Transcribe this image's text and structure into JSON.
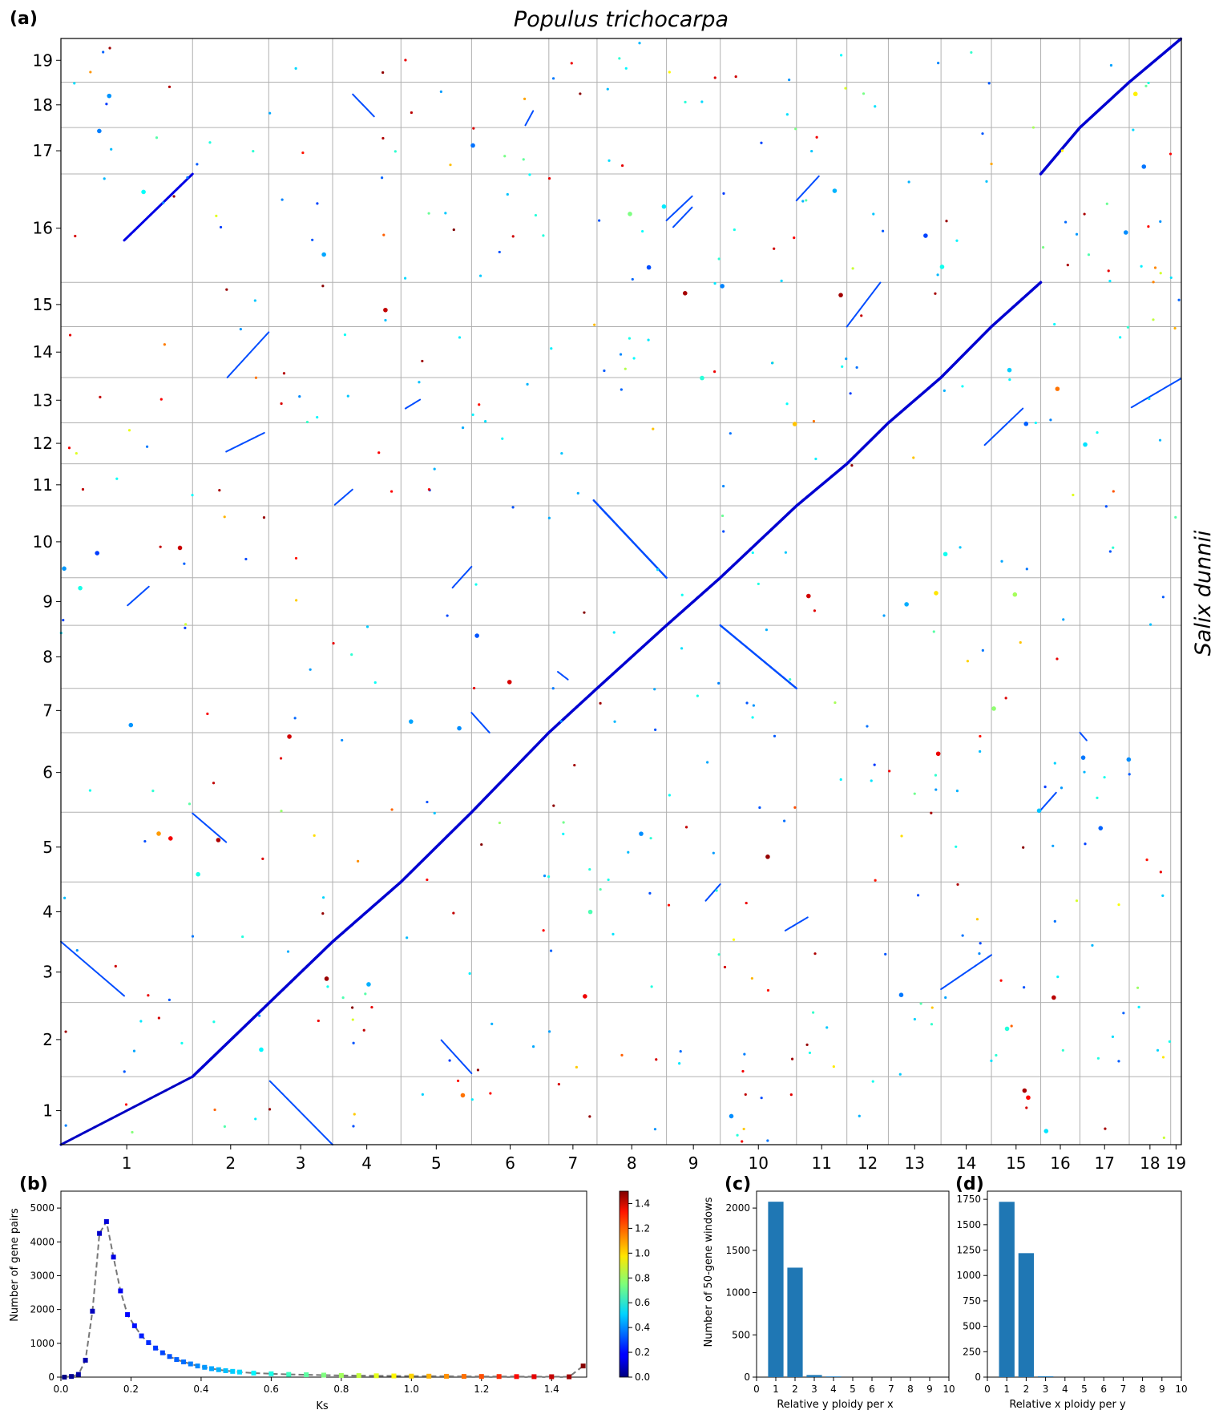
{
  "panel_labels": {
    "a": "(a)",
    "b": "(b)",
    "c": "(c)",
    "d": "(d)"
  },
  "chart_data": [
    {
      "id": "dotplot",
      "type": "scatter",
      "title": "Populus trichocarpa",
      "xlabel": "Populus trichocarpa",
      "ylabel": "Salix dunnii",
      "x_chromosomes": {
        "labels": [
          "1",
          "2",
          "3",
          "4",
          "5",
          "6",
          "7",
          "8",
          "9",
          "10",
          "11",
          "12",
          "13",
          "14",
          "15",
          "16",
          "17",
          "18",
          "19"
        ],
        "boundaries": [
          0,
          0.1175,
          0.1855,
          0.2425,
          0.3035,
          0.3665,
          0.4355,
          0.4785,
          0.5405,
          0.5885,
          0.6565,
          0.7015,
          0.7385,
          0.7855,
          0.8305,
          0.8745,
          0.9095,
          0.9535,
          0.9905,
          1.0
        ]
      },
      "y_chromosomes": {
        "labels": [
          "1",
          "2",
          "3",
          "4",
          "5",
          "6",
          "7",
          "8",
          "9",
          "10",
          "11",
          "12",
          "13",
          "14",
          "15",
          "16",
          "17",
          "18",
          "19"
        ],
        "boundaries": [
          0,
          0.0615,
          0.1285,
          0.1835,
          0.2375,
          0.3005,
          0.3725,
          0.4125,
          0.4695,
          0.5125,
          0.5775,
          0.6155,
          0.6525,
          0.6935,
          0.7395,
          0.7795,
          0.8775,
          0.9195,
          0.9605,
          1.0
        ]
      },
      "color_scale": {
        "name": "Ks",
        "min": 0.0,
        "max": 1.5
      },
      "segments": [
        {
          "x0": 0.0,
          "y0": 0.0,
          "x1": 0.1175,
          "y1": 0.0615,
          "ks": 0.1,
          "w": 3
        },
        {
          "x0": 0.1175,
          "y0": 0.0615,
          "x1": 0.2425,
          "y1": 0.1835,
          "ks": 0.12,
          "w": 3.5
        },
        {
          "x0": 0.2425,
          "y0": 0.1835,
          "x1": 0.3035,
          "y1": 0.2375,
          "ks": 0.12,
          "w": 3.5
        },
        {
          "x0": 0.3035,
          "y0": 0.2375,
          "x1": 0.3665,
          "y1": 0.3005,
          "ks": 0.12,
          "w": 3.5
        },
        {
          "x0": 0.3665,
          "y0": 0.3005,
          "x1": 0.4355,
          "y1": 0.3725,
          "ks": 0.12,
          "w": 3.5
        },
        {
          "x0": 0.4355,
          "y0": 0.3725,
          "x1": 0.4785,
          "y1": 0.4125,
          "ks": 0.12,
          "w": 3.5
        },
        {
          "x0": 0.4785,
          "y0": 0.4125,
          "x1": 0.5405,
          "y1": 0.4695,
          "ks": 0.12,
          "w": 3.5
        },
        {
          "x0": 0.5405,
          "y0": 0.4695,
          "x1": 0.5885,
          "y1": 0.5125,
          "ks": 0.12,
          "w": 3.5
        },
        {
          "x0": 0.5885,
          "y0": 0.5125,
          "x1": 0.6565,
          "y1": 0.5775,
          "ks": 0.12,
          "w": 3.5
        },
        {
          "x0": 0.6565,
          "y0": 0.5775,
          "x1": 0.7015,
          "y1": 0.6155,
          "ks": 0.12,
          "w": 3.5
        },
        {
          "x0": 0.7015,
          "y0": 0.6155,
          "x1": 0.7385,
          "y1": 0.6525,
          "ks": 0.12,
          "w": 3.5
        },
        {
          "x0": 0.7385,
          "y0": 0.6525,
          "x1": 0.7855,
          "y1": 0.6935,
          "ks": 0.12,
          "w": 3.5
        },
        {
          "x0": 0.7855,
          "y0": 0.6935,
          "x1": 0.8305,
          "y1": 0.7395,
          "ks": 0.12,
          "w": 3.5
        },
        {
          "x0": 0.8305,
          "y0": 0.7395,
          "x1": 0.8745,
          "y1": 0.7795,
          "ks": 0.12,
          "w": 3.5
        },
        {
          "x0": 0.8745,
          "y0": 0.8775,
          "x1": 0.9095,
          "y1": 0.9195,
          "ks": 0.12,
          "w": 3.5
        },
        {
          "x0": 0.9095,
          "y0": 0.9195,
          "x1": 0.9535,
          "y1": 0.9605,
          "ks": 0.12,
          "w": 3.5
        },
        {
          "x0": 0.9535,
          "y0": 0.9605,
          "x1": 1.0,
          "y1": 1.0,
          "ks": 0.12,
          "w": 3.5
        },
        {
          "x0": 0.0565,
          "y0": 0.8175,
          "x1": 0.1175,
          "y1": 0.8775,
          "ks": 0.15,
          "w": 3
        },
        {
          "x0": 0.0,
          "y0": 0.1835,
          "x1": 0.0565,
          "y1": 0.1345,
          "ks": 0.3,
          "w": 2
        },
        {
          "x0": 0.1175,
          "y0": 0.2995,
          "x1": 0.1475,
          "y1": 0.2735,
          "ks": 0.3,
          "w": 2
        },
        {
          "x0": 0.1865,
          "y0": 0.0575,
          "x1": 0.2425,
          "y1": 0.0,
          "ks": 0.3,
          "w": 2
        },
        {
          "x0": 0.3395,
          "y0": 0.0945,
          "x1": 0.3665,
          "y1": 0.0645,
          "ks": 0.3,
          "w": 2
        },
        {
          "x0": 0.4755,
          "y0": 0.5825,
          "x1": 0.5405,
          "y1": 0.5125,
          "ks": 0.3,
          "w": 2.5
        },
        {
          "x0": 0.5885,
          "y0": 0.4695,
          "x1": 0.6565,
          "y1": 0.4125,
          "ks": 0.3,
          "w": 2.5
        },
        {
          "x0": 0.1475,
          "y0": 0.6265,
          "x1": 0.1815,
          "y1": 0.6435,
          "ks": 0.3,
          "w": 2
        },
        {
          "x0": 0.1485,
          "y0": 0.6935,
          "x1": 0.1855,
          "y1": 0.7345,
          "ks": 0.3,
          "w": 2
        },
        {
          "x0": 0.0595,
          "y0": 0.4875,
          "x1": 0.0785,
          "y1": 0.5045,
          "ks": 0.3,
          "w": 2
        },
        {
          "x0": 0.3495,
          "y0": 0.5035,
          "x1": 0.3665,
          "y1": 0.5225,
          "ks": 0.3,
          "w": 2
        },
        {
          "x0": 0.2445,
          "y0": 0.5785,
          "x1": 0.2605,
          "y1": 0.5925,
          "ks": 0.3,
          "w": 2
        },
        {
          "x0": 0.3075,
          "y0": 0.6655,
          "x1": 0.3205,
          "y1": 0.6735,
          "ks": 0.3,
          "w": 2
        },
        {
          "x0": 0.2605,
          "y0": 0.9495,
          "x1": 0.2795,
          "y1": 0.9295,
          "ks": 0.3,
          "w": 2
        },
        {
          "x0": 0.5465,
          "y0": 0.8295,
          "x1": 0.5635,
          "y1": 0.8475,
          "ks": 0.3,
          "w": 2
        },
        {
          "x0": 0.6565,
          "y0": 0.8535,
          "x1": 0.6765,
          "y1": 0.8755,
          "ks": 0.3,
          "w": 2
        },
        {
          "x0": 0.7015,
          "y0": 0.7395,
          "x1": 0.7315,
          "y1": 0.7795,
          "ks": 0.3,
          "w": 2
        },
        {
          "x0": 0.8245,
          "y0": 0.6325,
          "x1": 0.8585,
          "y1": 0.6655,
          "ks": 0.3,
          "w": 2
        },
        {
          "x0": 0.7855,
          "y0": 0.1405,
          "x1": 0.8305,
          "y1": 0.1715,
          "ks": 0.3,
          "w": 2
        },
        {
          "x0": 0.9555,
          "y0": 0.6665,
          "x1": 0.9995,
          "y1": 0.6925,
          "ks": 0.3,
          "w": 2
        },
        {
          "x0": 0.5755,
          "y0": 0.2205,
          "x1": 0.5885,
          "y1": 0.2355,
          "ks": 0.3,
          "w": 2
        },
        {
          "x0": 0.8745,
          "y0": 0.3025,
          "x1": 0.8885,
          "y1": 0.3185,
          "ks": 0.3,
          "w": 2
        },
        {
          "x0": 0.3665,
          "y0": 0.3905,
          "x1": 0.3825,
          "y1": 0.3725,
          "ks": 0.3,
          "w": 2
        },
        {
          "x0": 0.4435,
          "y0": 0.4275,
          "x1": 0.4525,
          "y1": 0.4205,
          "ks": 0.3,
          "w": 2
        },
        {
          "x0": 0.9095,
          "y0": 0.3725,
          "x1": 0.9155,
          "y1": 0.3655,
          "ks": 0.3,
          "w": 2
        },
        {
          "x0": 0.6465,
          "y0": 0.1935,
          "x1": 0.6665,
          "y1": 0.2055,
          "ks": 0.3,
          "w": 2
        },
        {
          "x0": 0.5405,
          "y0": 0.8355,
          "x1": 0.5635,
          "y1": 0.8575,
          "ks": 0.3,
          "w": 2
        },
        {
          "x0": 0.4145,
          "y0": 0.9215,
          "x1": 0.4215,
          "y1": 0.9345,
          "ks": 0.3,
          "w": 2
        }
      ]
    },
    {
      "id": "ks_distribution",
      "type": "line",
      "xlabel": "Ks",
      "ylabel": "Number of gene pairs",
      "xlim": [
        0,
        1.5
      ],
      "ylim": [
        0,
        5500
      ],
      "xticks": [
        "0.0",
        "0.2",
        "0.4",
        "0.6",
        "0.8",
        "1.0",
        "1.2",
        "1.4"
      ],
      "yticks": [
        "0",
        "1000",
        "2000",
        "3000",
        "4000",
        "5000"
      ],
      "x": [
        0.01,
        0.03,
        0.05,
        0.07,
        0.09,
        0.11,
        0.13,
        0.15,
        0.17,
        0.19,
        0.21,
        0.23,
        0.25,
        0.27,
        0.29,
        0.31,
        0.33,
        0.35,
        0.37,
        0.39,
        0.41,
        0.43,
        0.45,
        0.47,
        0.49,
        0.51,
        0.55,
        0.6,
        0.65,
        0.7,
        0.75,
        0.8,
        0.85,
        0.9,
        0.95,
        1.0,
        1.05,
        1.1,
        1.15,
        1.2,
        1.25,
        1.3,
        1.35,
        1.4,
        1.45,
        1.49
      ],
      "values": [
        0,
        20,
        80,
        500,
        1950,
        4250,
        4600,
        3550,
        2550,
        1850,
        1520,
        1220,
        1020,
        860,
        720,
        610,
        520,
        450,
        390,
        330,
        290,
        250,
        220,
        190,
        170,
        150,
        120,
        100,
        80,
        70,
        60,
        50,
        45,
        40,
        35,
        30,
        28,
        25,
        22,
        20,
        18,
        16,
        14,
        12,
        10,
        330
      ],
      "colorbar": {
        "min": 0.0,
        "max": 1.5,
        "ticks": [
          "0.0",
          "0.2",
          "0.4",
          "0.6",
          "0.8",
          "1.0",
          "1.2",
          "1.4"
        ]
      }
    },
    {
      "id": "ploidy_y_per_x",
      "type": "bar",
      "xlabel": "Relative y ploidy per x",
      "ylabel": "Number of 50-gene windows",
      "categories": [
        1,
        2,
        3,
        4,
        5,
        6,
        7,
        8,
        9,
        10
      ],
      "values": [
        2075,
        1295,
        25,
        8,
        0,
        0,
        0,
        0,
        0,
        0
      ],
      "xlim": [
        0,
        10
      ],
      "ylim": [
        0,
        2200
      ],
      "xticks": [
        "0",
        "1",
        "2",
        "3",
        "4",
        "5",
        "6",
        "7",
        "8",
        "9",
        "10"
      ],
      "yticks": [
        "0",
        "500",
        "1000",
        "1500",
        "2000"
      ],
      "color": "#1f77b4"
    },
    {
      "id": "ploidy_x_per_y",
      "type": "bar",
      "xlabel": "Relative x ploidy per y",
      "ylabel": "",
      "categories": [
        1,
        2,
        3,
        4,
        5,
        6,
        7,
        8,
        9,
        10
      ],
      "values": [
        1725,
        1220,
        8,
        0,
        0,
        0,
        0,
        0,
        0,
        0
      ],
      "xlim": [
        0,
        10
      ],
      "ylim": [
        0,
        1830
      ],
      "xticks": [
        "0",
        "1",
        "2",
        "3",
        "4",
        "5",
        "6",
        "7",
        "8",
        "9",
        "10"
      ],
      "yticks": [
        "0",
        "250",
        "500",
        "750",
        "1000",
        "1250",
        "1500",
        "1750"
      ],
      "color": "#1f77b4"
    }
  ]
}
